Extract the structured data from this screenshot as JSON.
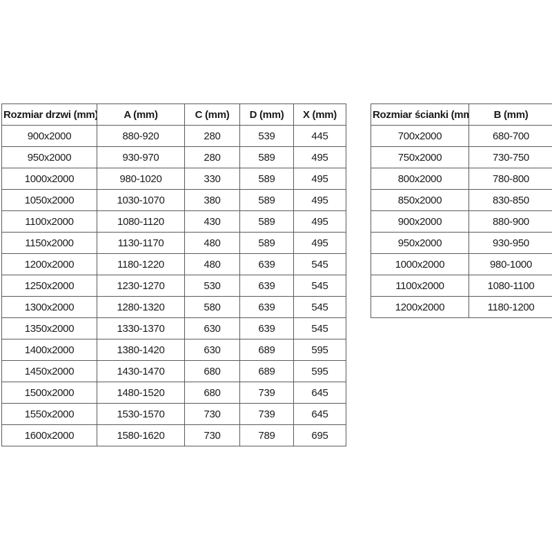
{
  "colors": {
    "background": "#ffffff",
    "border": "#595959",
    "text": "#1a1a1a"
  },
  "tables": [
    {
      "id": "door-size-table",
      "headers": [
        "Rozmiar drzwi (mm)",
        "A (mm)",
        "C (mm)",
        "D (mm)",
        "X (mm)"
      ],
      "rows": [
        [
          "900x2000",
          "880-920",
          "280",
          "539",
          "445"
        ],
        [
          "950x2000",
          "930-970",
          "280",
          "589",
          "495"
        ],
        [
          "1000x2000",
          "980-1020",
          "330",
          "589",
          "495"
        ],
        [
          "1050x2000",
          "1030-1070",
          "380",
          "589",
          "495"
        ],
        [
          "1100x2000",
          "1080-1120",
          "430",
          "589",
          "495"
        ],
        [
          "1150x2000",
          "1130-1170",
          "480",
          "589",
          "495"
        ],
        [
          "1200x2000",
          "1180-1220",
          "480",
          "639",
          "545"
        ],
        [
          "1250x2000",
          "1230-1270",
          "530",
          "639",
          "545"
        ],
        [
          "1300x2000",
          "1280-1320",
          "580",
          "639",
          "545"
        ],
        [
          "1350x2000",
          "1330-1370",
          "630",
          "639",
          "545"
        ],
        [
          "1400x2000",
          "1380-1420",
          "630",
          "689",
          "595"
        ],
        [
          "1450x2000",
          "1430-1470",
          "680",
          "689",
          "595"
        ],
        [
          "1500x2000",
          "1480-1520",
          "680",
          "739",
          "645"
        ],
        [
          "1550x2000",
          "1530-1570",
          "730",
          "739",
          "645"
        ],
        [
          "1600x2000",
          "1580-1620",
          "730",
          "789",
          "695"
        ]
      ]
    },
    {
      "id": "wall-panel-size-table",
      "headers": [
        "Rozmiar ścianki (mm)",
        "B (mm)"
      ],
      "rows": [
        [
          "700x2000",
          "680-700"
        ],
        [
          "750x2000",
          "730-750"
        ],
        [
          "800x2000",
          "780-800"
        ],
        [
          "850x2000",
          "830-850"
        ],
        [
          "900x2000",
          "880-900"
        ],
        [
          "950x2000",
          "930-950"
        ],
        [
          "1000x2000",
          "980-1000"
        ],
        [
          "1100x2000",
          "1080-1100"
        ],
        [
          "1200x2000",
          "1180-1200"
        ]
      ]
    }
  ]
}
